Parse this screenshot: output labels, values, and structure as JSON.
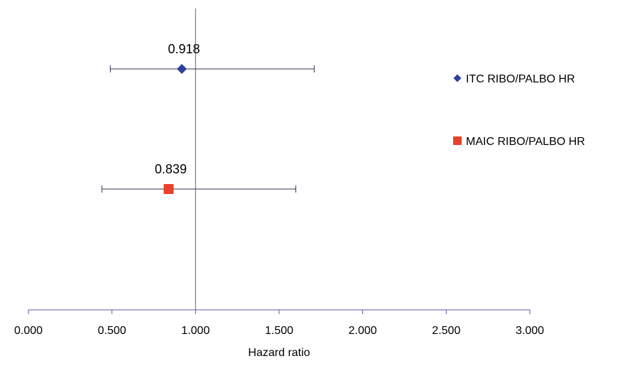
{
  "chart_data": {
    "type": "scatter",
    "title": "",
    "xlabel": "Hazard ratio",
    "ylabel": "",
    "xlim": [
      0,
      3
    ],
    "x_ticks": [
      "0.000",
      "0.500",
      "1.000",
      "1.500",
      "2.000",
      "2.500",
      "3.000"
    ],
    "reference_line_x": 1,
    "grid": false,
    "legend_position": "right",
    "series": [
      {
        "name": "ITC RIBO/PALBO HR",
        "marker": "diamond",
        "color": "#2f3f9e",
        "x": 0.918,
        "ci_low": 0.49,
        "ci_high": 1.71,
        "label": "0.918"
      },
      {
        "name": "MAIC RIBO/PALBO HR",
        "marker": "square",
        "color": "#e8412b",
        "x": 0.839,
        "ci_low": 0.44,
        "ci_high": 1.6,
        "label": "0.839"
      }
    ],
    "axis_color": "#5b5ba8",
    "errorbar_color": "#333355"
  }
}
